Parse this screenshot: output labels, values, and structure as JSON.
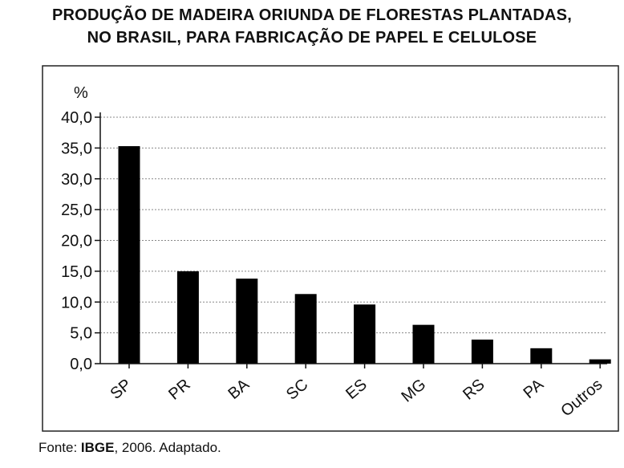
{
  "title_line1": "PRODUÇÃO DE MADEIRA ORIUNDA DE FLORESTAS PLANTADAS,",
  "title_line2": "NO BRASIL, PARA FABRICAÇÃO DE PAPEL E CELULOSE",
  "source_prefix": "Fonte: ",
  "source_org": "IBGE",
  "source_suffix": ", 2006. Adaptado.",
  "chart_data": {
    "type": "bar",
    "title": "PRODUÇÃO DE MADEIRA ORIUNDA DE FLORESTAS PLANTADAS, NO BRASIL, PARA FABRICAÇÃO DE PAPEL E CELULOSE",
    "ylabel": "%",
    "xlabel": "",
    "ylim": [
      0,
      40
    ],
    "yticks": [
      "0,0",
      "5,0",
      "10,0",
      "15,0",
      "20,0",
      "25,0",
      "30,0",
      "35,0",
      "40,0"
    ],
    "grid": true,
    "categories": [
      "SP",
      "PR",
      "BA",
      "SC",
      "ES",
      "MG",
      "RS",
      "PA",
      "Outros"
    ],
    "values": [
      35.3,
      15.0,
      13.8,
      11.3,
      9.6,
      6.3,
      3.9,
      2.5,
      0.7
    ],
    "bar_color": "#000000",
    "grid_color": "#888888"
  }
}
